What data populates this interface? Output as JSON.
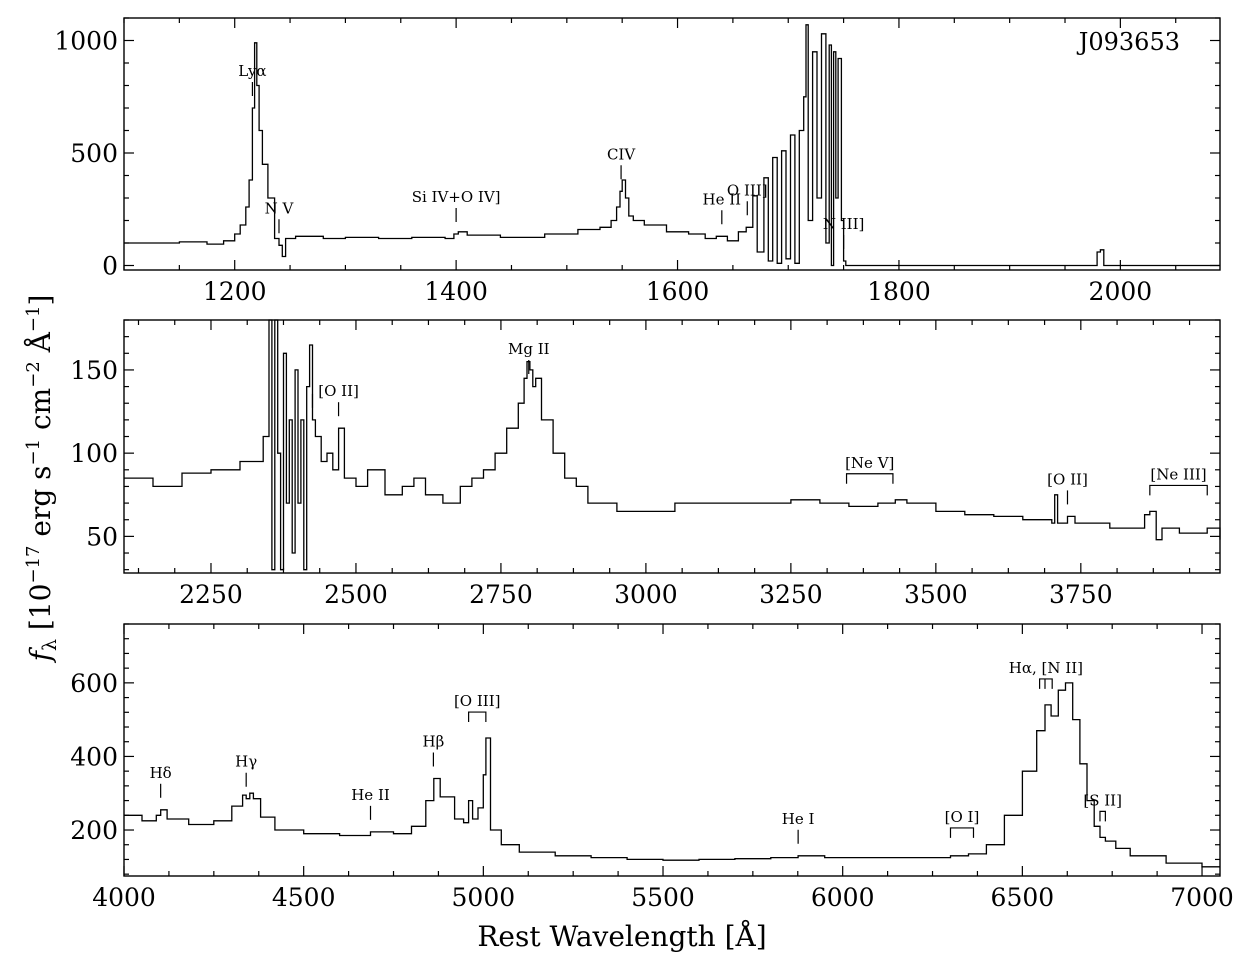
{
  "figure": {
    "object_name": "J093653",
    "xlabel": "Rest Wavelength [Å]",
    "ylabel": "f_λ [10^-17 erg s^-1 cm^-2 Å^-1]"
  },
  "chart_data": [
    {
      "type": "line",
      "panel": "top",
      "xlim": [
        1100,
        2090
      ],
      "ylim": [
        -20,
        1100
      ],
      "x_ticks": [
        1200,
        1400,
        1600,
        1800,
        2000
      ],
      "y_ticks": [
        0,
        500,
        1000
      ],
      "annotation_text": "J093653",
      "series": [
        {
          "x": [
            1100,
            1150,
            1175,
            1190,
            1200,
            1205,
            1210,
            1213,
            1216,
            1218,
            1220,
            1222,
            1225,
            1230,
            1236,
            1240,
            1243,
            1246,
            1255,
            1280,
            1300,
            1330,
            1360,
            1390,
            1398,
            1402,
            1410,
            1440,
            1480,
            1510,
            1530,
            1540,
            1545,
            1548,
            1550,
            1553,
            1556,
            1560,
            1570,
            1590,
            1610,
            1625,
            1635,
            1645,
            1655,
            1662,
            1668,
            1672,
            1678,
            1682,
            1686,
            1690,
            1694,
            1698,
            1702,
            1706,
            1710,
            1714,
            1716,
            1718,
            1722,
            1726,
            1730,
            1734,
            1737,
            1739,
            1741,
            1743,
            1745,
            1748,
            1750,
            1752,
            1800,
            1900,
            1975,
            1979,
            1982,
            1985,
            2000,
            2090
          ],
          "y": [
            100,
            105,
            95,
            110,
            140,
            180,
            260,
            380,
            700,
            990,
            800,
            600,
            450,
            300,
            120,
            90,
            40,
            120,
            130,
            120,
            125,
            120,
            125,
            120,
            140,
            150,
            135,
            125,
            140,
            160,
            170,
            200,
            260,
            330,
            380,
            300,
            220,
            200,
            180,
            150,
            140,
            120,
            130,
            110,
            150,
            170,
            310,
            60,
            390,
            20,
            480,
            10,
            510,
            30,
            580,
            10,
            600,
            750,
            1070,
            200,
            950,
            300,
            1030,
            100,
            980,
            0,
            950,
            300,
            920,
            200,
            20,
            0,
            0,
            0,
            0,
            60,
            70,
            0,
            0,
            0
          ]
        }
      ],
      "lines": [
        {
          "label": "Lyα",
          "x": 1216
        },
        {
          "label": "N V",
          "x": 1240
        },
        {
          "label": "Si IV+O IV]",
          "x": 1400
        },
        {
          "label": "CIV",
          "x": 1549
        },
        {
          "label": "He II",
          "x": 1640
        },
        {
          "label": "O III]",
          "x": 1663
        },
        {
          "label": "N III]",
          "x": 1750
        }
      ]
    },
    {
      "type": "line",
      "panel": "middle",
      "xlim": [
        2100,
        3990
      ],
      "ylim": [
        28,
        180
      ],
      "x_ticks": [
        2250,
        2500,
        2750,
        3000,
        3250,
        3500,
        3750
      ],
      "y_ticks": [
        50,
        100,
        150
      ],
      "series": [
        {
          "x": [
            2100,
            2150,
            2200,
            2250,
            2300,
            2340,
            2350,
            2355,
            2360,
            2365,
            2370,
            2375,
            2380,
            2385,
            2390,
            2395,
            2400,
            2405,
            2410,
            2415,
            2420,
            2425,
            2430,
            2440,
            2450,
            2460,
            2470,
            2480,
            2500,
            2520,
            2550,
            2580,
            2600,
            2620,
            2650,
            2680,
            2700,
            2720,
            2740,
            2760,
            2780,
            2790,
            2795,
            2800,
            2805,
            2810,
            2820,
            2840,
            2860,
            2880,
            2900,
            2950,
            3000,
            3050,
            3100,
            3150,
            3200,
            3250,
            3300,
            3350,
            3400,
            3430,
            3450,
            3500,
            3550,
            3600,
            3650,
            3700,
            3705,
            3710,
            3727,
            3740,
            3800,
            3850,
            3860,
            3869,
            3880,
            3890,
            3920,
            3950,
            3968,
            3990
          ],
          "y": [
            85,
            80,
            88,
            90,
            95,
            110,
            180,
            30,
            180,
            100,
            30,
            160,
            70,
            120,
            40,
            150,
            70,
            120,
            30,
            140,
            165,
            120,
            110,
            95,
            100,
            90,
            115,
            85,
            80,
            90,
            75,
            80,
            85,
            75,
            70,
            80,
            85,
            90,
            100,
            115,
            130,
            145,
            155,
            150,
            140,
            145,
            120,
            100,
            85,
            80,
            70,
            65,
            65,
            70,
            70,
            70,
            70,
            72,
            70,
            68,
            70,
            72,
            70,
            65,
            63,
            62,
            60,
            58,
            75,
            58,
            62,
            58,
            55,
            55,
            63,
            65,
            48,
            55,
            52,
            52,
            55,
            48
          ]
        }
      ],
      "lines": [
        {
          "label": "",
          "x": 2425
        },
        {
          "label": "[O II]",
          "x": 2470
        },
        {
          "label": "Mg II",
          "x": 2798
        },
        {
          "label": "[Ne V]",
          "x_start": 3346,
          "x_end": 3426
        },
        {
          "label": "[O II]",
          "x": 3727
        },
        {
          "label": "[Ne III]",
          "x_start": 3869,
          "x_end": 3968
        }
      ]
    },
    {
      "type": "line",
      "panel": "bottom",
      "xlim": [
        4000,
        7050
      ],
      "ylim": [
        75,
        760
      ],
      "x_ticks": [
        4000,
        4500,
        5000,
        5500,
        6000,
        6500,
        7000
      ],
      "y_ticks": [
        200,
        400,
        600
      ],
      "series": [
        {
          "x": [
            4000,
            4050,
            4090,
            4102,
            4120,
            4180,
            4250,
            4300,
            4330,
            4340,
            4350,
            4360,
            4380,
            4420,
            4500,
            4600,
            4686,
            4750,
            4800,
            4840,
            4862,
            4880,
            4920,
            4945,
            4959,
            4970,
            4985,
            5000,
            5007,
            5020,
            5050,
            5100,
            5200,
            5300,
            5400,
            5500,
            5600,
            5700,
            5800,
            5876,
            5950,
            6050,
            6150,
            6250,
            6300,
            6350,
            6400,
            6450,
            6500,
            6540,
            6563,
            6580,
            6600,
            6620,
            6640,
            6660,
            6680,
            6700,
            6716,
            6731,
            6760,
            6800,
            6900,
            7000,
            7050
          ],
          "y": [
            240,
            225,
            240,
            255,
            230,
            215,
            225,
            265,
            295,
            285,
            300,
            285,
            235,
            200,
            190,
            185,
            195,
            190,
            210,
            280,
            340,
            290,
            230,
            220,
            280,
            230,
            260,
            350,
            450,
            200,
            160,
            140,
            130,
            125,
            120,
            118,
            120,
            122,
            125,
            130,
            125,
            125,
            125,
            125,
            130,
            135,
            160,
            240,
            360,
            470,
            540,
            510,
            580,
            600,
            500,
            380,
            280,
            210,
            180,
            170,
            150,
            130,
            110,
            100,
            100
          ]
        }
      ],
      "lines": [
        {
          "label": "Hδ",
          "x": 4102
        },
        {
          "label": "Hγ",
          "x": 4340
        },
        {
          "label": "He II",
          "x": 4686
        },
        {
          "label": "Hβ",
          "x": 4861
        },
        {
          "label": "[O III]",
          "x_start": 4959,
          "x_end": 5007
        },
        {
          "label": "He I",
          "x": 5876
        },
        {
          "label": "[O I]",
          "x_start": 6300,
          "x_end": 6364
        },
        {
          "label": "Hα, [N II]",
          "x_values": [
            6548,
            6563,
            6583
          ]
        },
        {
          "label": "[S II]",
          "x_values": [
            6716,
            6731
          ]
        }
      ]
    }
  ]
}
